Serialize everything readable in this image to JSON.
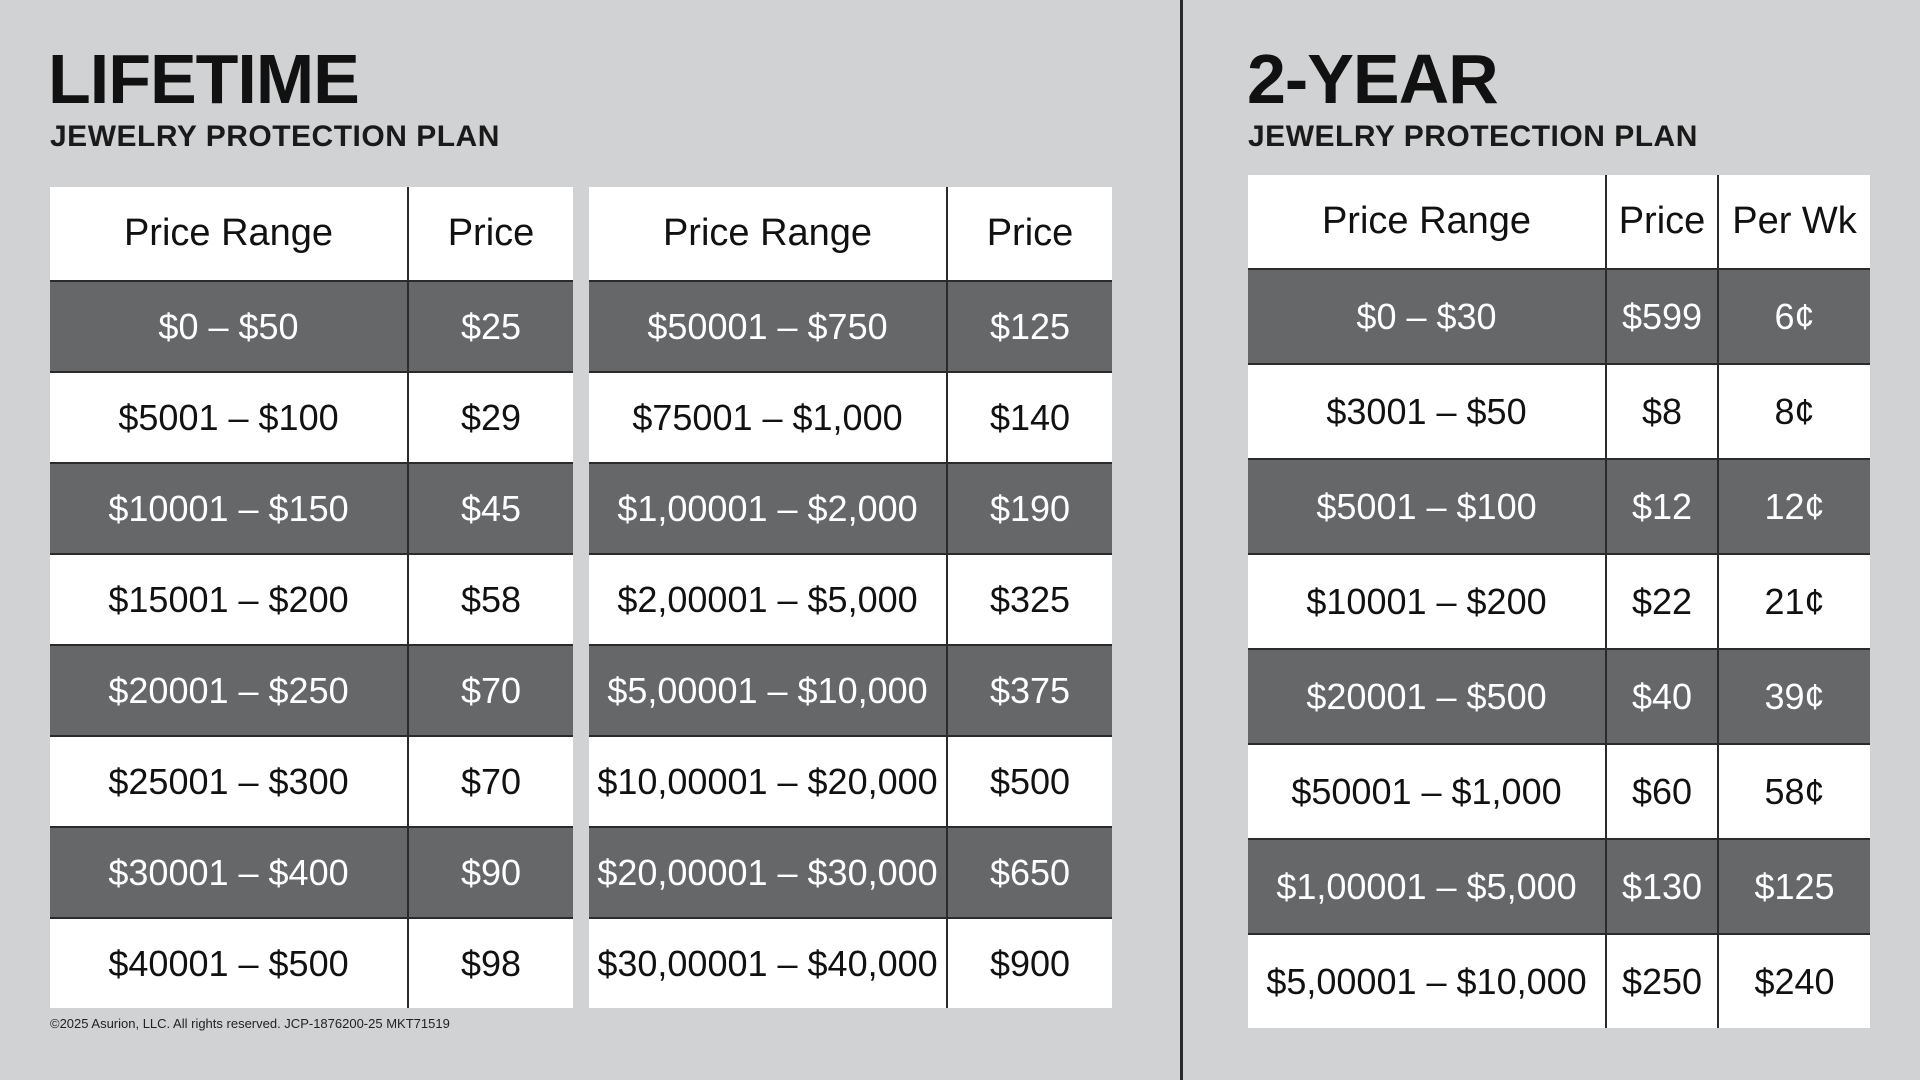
{
  "lifetime": {
    "title": "LIFETIME",
    "subtitle": "JEWELRY PROTECTION PLAN",
    "header_range": "Price Range",
    "header_price": "Price",
    "table_left": [
      {
        "range": "$0 – $50",
        "price": "$25"
      },
      {
        "range": "$5001 – $100",
        "price": "$29"
      },
      {
        "range": "$10001 – $150",
        "price": "$45"
      },
      {
        "range": "$15001 – $200",
        "price": "$58"
      },
      {
        "range": "$20001 – $250",
        "price": "$70"
      },
      {
        "range": "$25001 – $300",
        "price": "$70"
      },
      {
        "range": "$30001 – $400",
        "price": "$90"
      },
      {
        "range": "$40001 – $500",
        "price": "$98"
      }
    ],
    "table_right": [
      {
        "range": "$50001 – $750",
        "price": "$125"
      },
      {
        "range": "$75001 – $1,000",
        "price": "$140"
      },
      {
        "range": "$1,00001 – $2,000",
        "price": "$190"
      },
      {
        "range": "$2,00001 – $5,000",
        "price": "$325"
      },
      {
        "range": "$5,00001 – $10,000",
        "price": "$375"
      },
      {
        "range": "$10,00001 – $20,000",
        "price": "$500"
      },
      {
        "range": "$20,00001 – $30,000",
        "price": "$650"
      },
      {
        "range": "$30,00001 – $40,000",
        "price": "$900"
      }
    ]
  },
  "two_year": {
    "title": "2-YEAR",
    "subtitle": "JEWELRY PROTECTION PLAN",
    "header_range": "Price Range",
    "header_price": "Price",
    "header_per_wk": "Per Wk",
    "rows": [
      {
        "range": "$0 – $30",
        "price": "$599",
        "per_wk": "6¢"
      },
      {
        "range": "$3001 – $50",
        "price": "$8",
        "per_wk": "8¢"
      },
      {
        "range": "$5001 – $100",
        "price": "$12",
        "per_wk": "12¢"
      },
      {
        "range": "$10001 – $200",
        "price": "$22",
        "per_wk": "21¢"
      },
      {
        "range": "$20001 – $500",
        "price": "$40",
        "per_wk": "39¢"
      },
      {
        "range": "$50001 – $1,000",
        "price": "$60",
        "per_wk": "58¢"
      },
      {
        "range": "$1,00001 – $5,000",
        "price": "$130",
        "per_wk": "$125"
      },
      {
        "range": "$5,00001 – $10,000",
        "price": "$250",
        "per_wk": "$240"
      }
    ]
  },
  "footer": "©2025 Asurion, LLC. All rights reserved. JCP-1876200-25 MKT71519"
}
